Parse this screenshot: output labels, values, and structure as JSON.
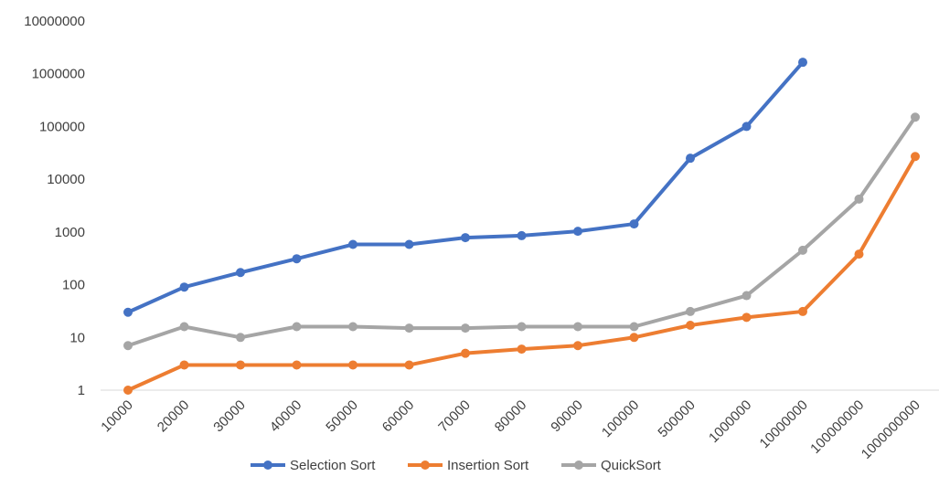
{
  "chart_data": {
    "type": "line",
    "title": "",
    "xlabel": "",
    "ylabel": "",
    "y_scale": "log",
    "ylim": [
      1,
      10000000
    ],
    "y_ticks": [
      "1",
      "10",
      "100",
      "1000",
      "10000",
      "100000",
      "1000000",
      "10000000"
    ],
    "categories": [
      "10000",
      "20000",
      "30000",
      "40000",
      "50000",
      "60000",
      "70000",
      "80000",
      "90000",
      "100000",
      "500000",
      "1000000",
      "10000000",
      "100000000",
      "1000000000"
    ],
    "grid": false,
    "legend_position": "bottom",
    "series": [
      {
        "name": "Selection Sort",
        "color": "#4472C4",
        "values": [
          30,
          90,
          170,
          310,
          580,
          580,
          780,
          850,
          1030,
          1420,
          25000,
          100000,
          1650000,
          null,
          null
        ]
      },
      {
        "name": "Insertion Sort",
        "color": "#ED7D31",
        "values": [
          1,
          3,
          3,
          3,
          3,
          3,
          5,
          6,
          7,
          10,
          17,
          24,
          31,
          380,
          27000
        ]
      },
      {
        "name": "QuickSort",
        "color": "#A5A5A5",
        "values": [
          7,
          16,
          10,
          16,
          16,
          15,
          15,
          16,
          16,
          16,
          31,
          62,
          450,
          4200,
          150000
        ]
      }
    ]
  }
}
